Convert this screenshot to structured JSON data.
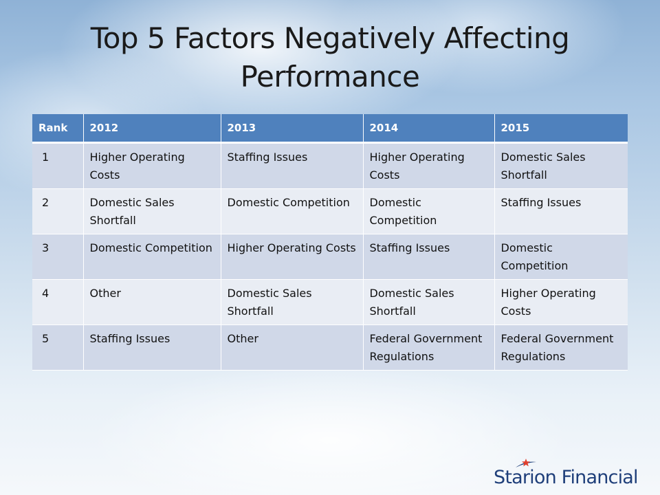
{
  "title": {
    "line1": "Top 5 Factors Negatively Affecting",
    "line2": "Performance"
  },
  "table": {
    "headers": [
      "Rank",
      "2012",
      "2013",
      "2014",
      "2015"
    ],
    "rows": [
      [
        "1",
        "Higher Operating Costs",
        "Staffing Issues",
        "Higher Operating Costs",
        "Domestic Sales Shortfall"
      ],
      [
        "2",
        "Domestic Sales Shortfall",
        "Domestic Competition",
        "Domestic Competition",
        "Staffing Issues"
      ],
      [
        "3",
        "Domestic Competition",
        "Higher Operating Costs",
        "Staffing Issues",
        "Domestic Competition"
      ],
      [
        "4",
        "Other",
        "Domestic Sales Shortfall",
        "Domestic Sales Shortfall",
        "Higher Operating Costs"
      ],
      [
        "5",
        "Staffing Issues",
        "Other",
        "Federal Government Regulations",
        "Federal Government Regulations"
      ]
    ]
  },
  "logo": {
    "text": "Starion Financial",
    "icon": "star-swoosh-icon",
    "colors": {
      "text": "#1f3f7a",
      "star": "#e0402e"
    }
  },
  "colors": {
    "header_bg": "#4f81bd",
    "row_odd_bg": "#d0d8e8",
    "row_even_bg": "#e9edf4"
  }
}
